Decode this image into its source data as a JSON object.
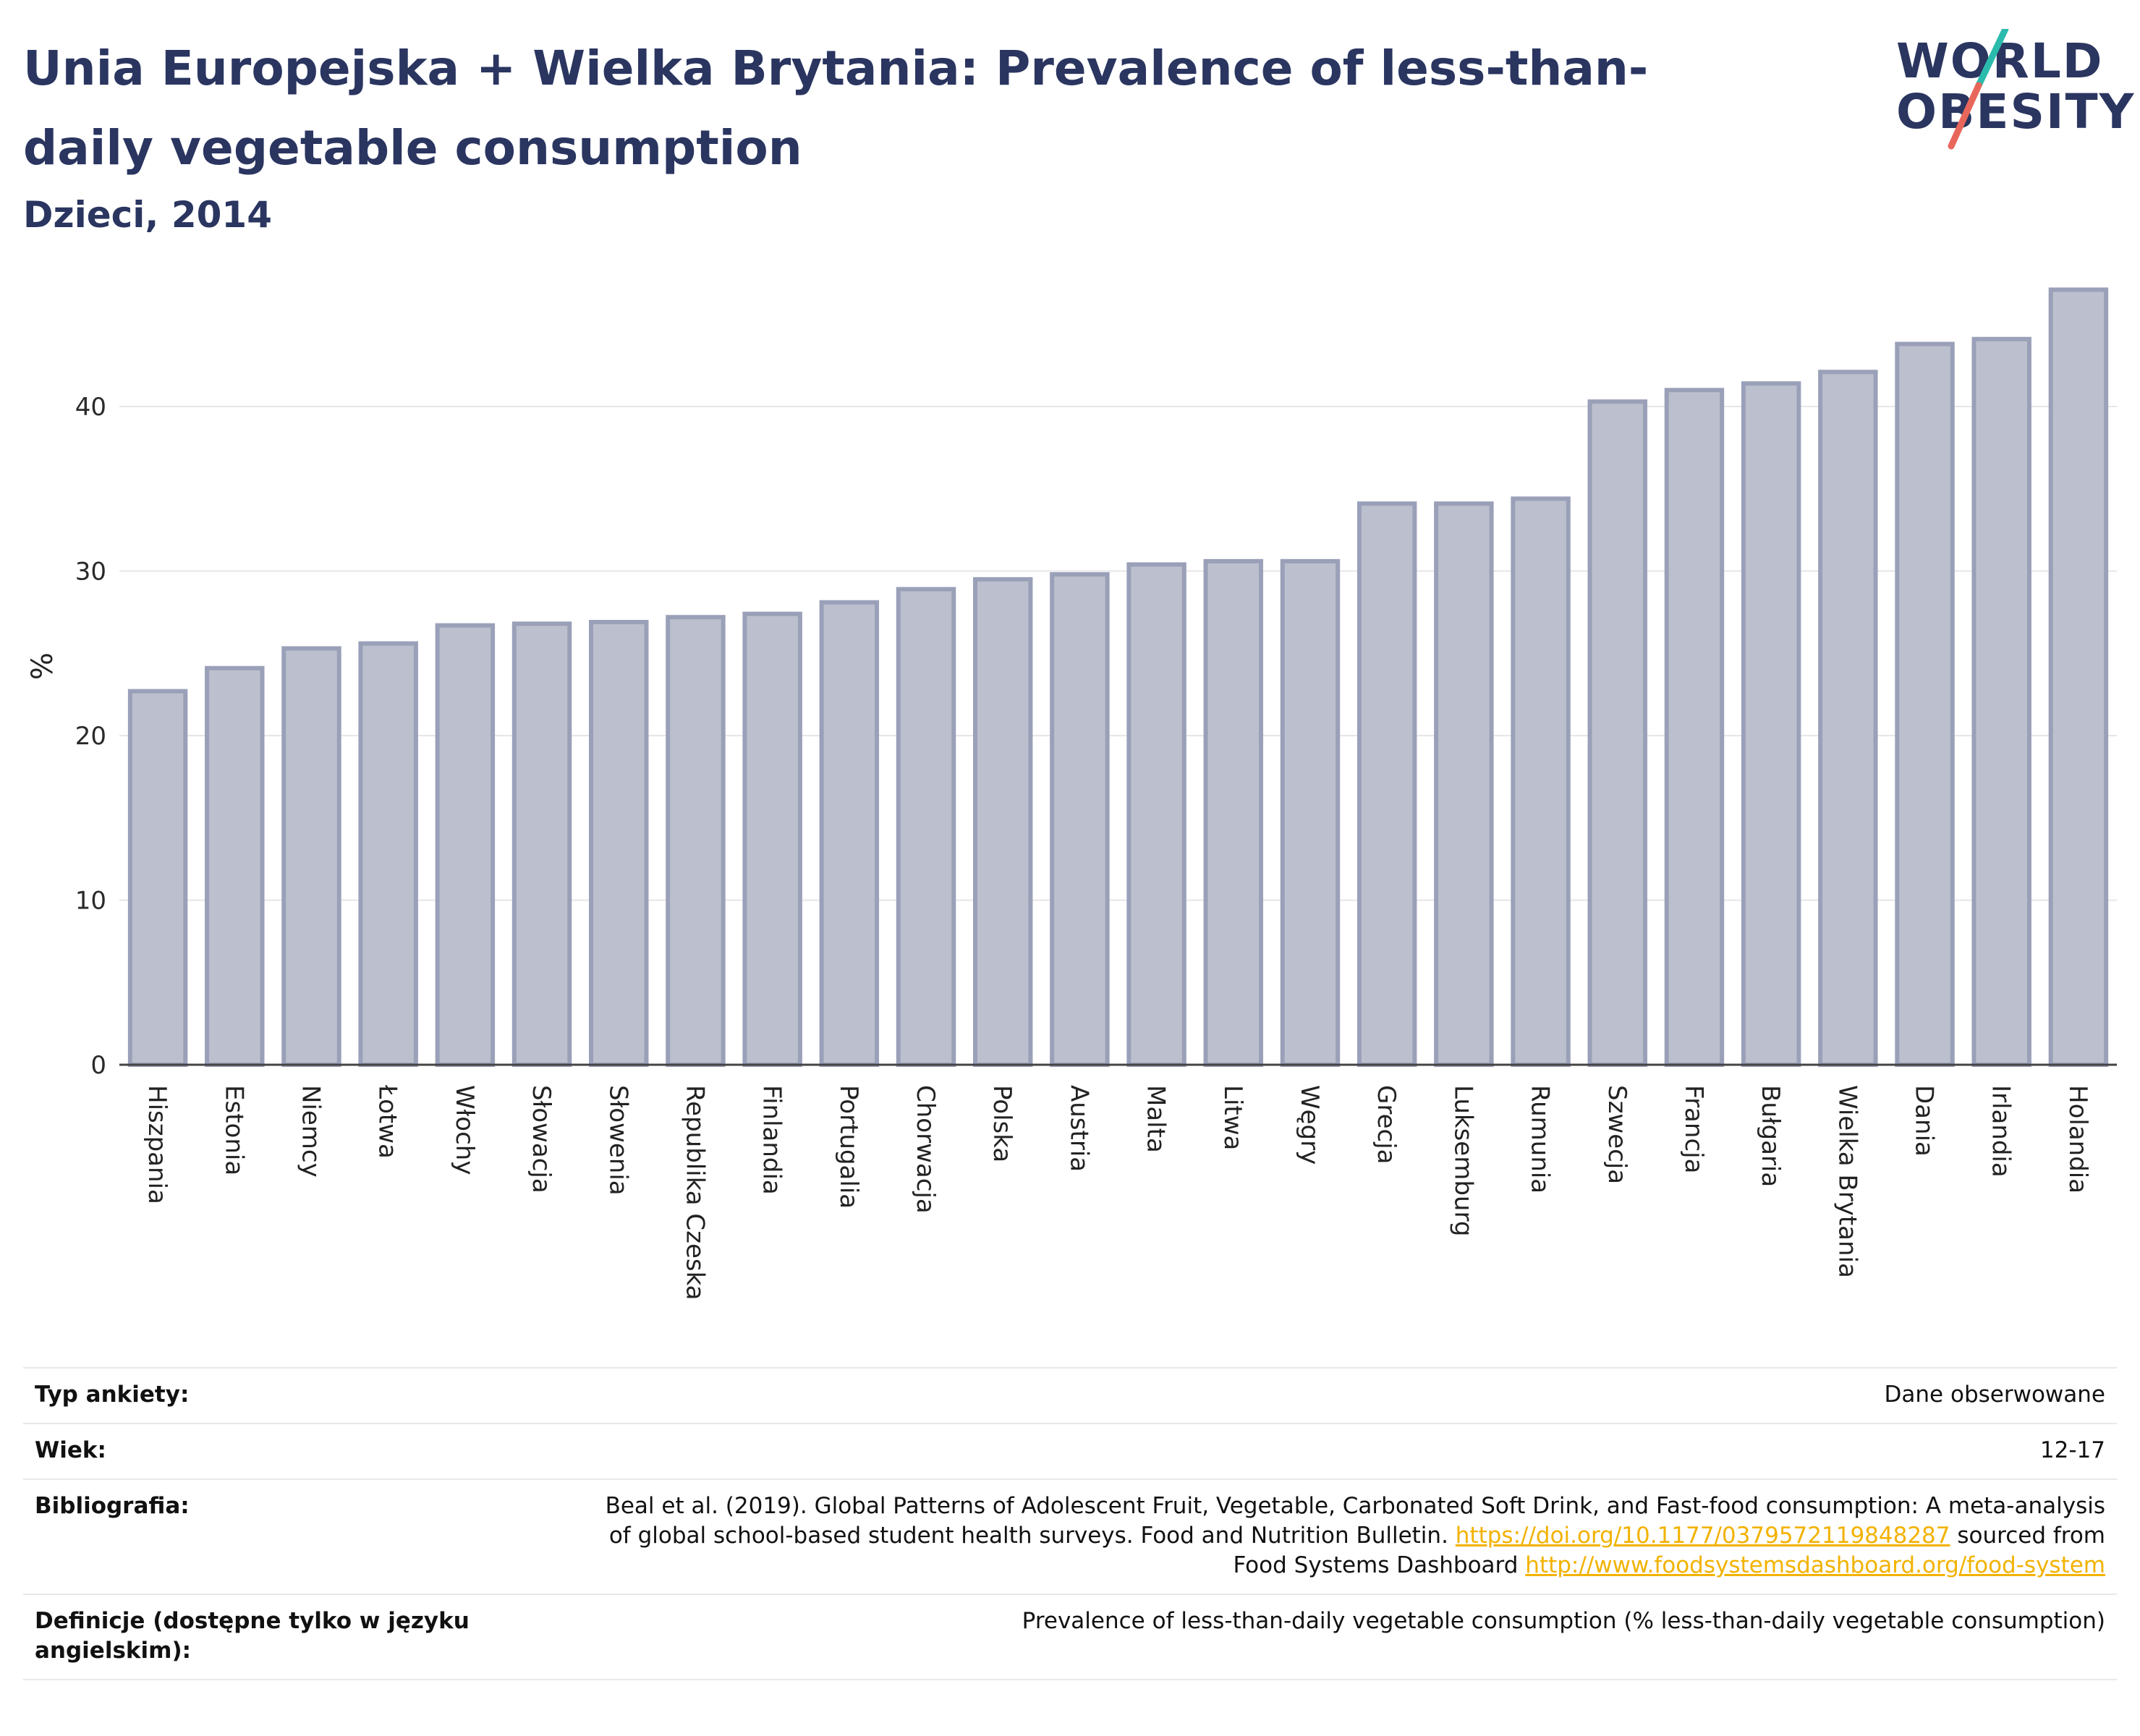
{
  "header": {
    "title": "Unia Europejska + Wielka Brytania: Prevalence of less-than-daily vegetable consumption",
    "subtitle": "Dzieci, 2014"
  },
  "logo": {
    "line1": "WORLD",
    "line2": "OBESITY",
    "accent_colors": [
      "#2bbbad",
      "#e8675a"
    ]
  },
  "chart_data": {
    "type": "bar",
    "title": "Unia Europejska + Wielka Brytania: Prevalence of less-than-daily vegetable consumption",
    "subtitle": "Dzieci, 2014",
    "ylabel": "%",
    "xlabel": "",
    "ylim": [
      0,
      48
    ],
    "yticks": [
      0,
      10,
      20,
      30,
      40
    ],
    "grid": true,
    "legend": "none",
    "bar_color": "#bcc0ce",
    "categories": [
      "Hiszpania",
      "Estonia",
      "Niemcy",
      "Łotwa",
      "Włochy",
      "Słowacja",
      "Słowenia",
      "Republika Czeska",
      "Finlandia",
      "Portugalia",
      "Chorwacja",
      "Polska",
      "Austria",
      "Malta",
      "Litwa",
      "Węgry",
      "Grecja",
      "Luksemburg",
      "Rumunia",
      "Szwecja",
      "Francja",
      "Bułgaria",
      "Wielka Brytania",
      "Dania",
      "Irlandia",
      "Holandia"
    ],
    "values": [
      22.7,
      24.1,
      25.3,
      25.6,
      26.7,
      26.8,
      26.9,
      27.2,
      27.4,
      28.1,
      28.9,
      29.5,
      29.8,
      30.4,
      30.6,
      30.6,
      34.1,
      34.1,
      34.4,
      40.3,
      41.0,
      41.4,
      42.1,
      43.8,
      44.1,
      47.1
    ]
  },
  "meta": {
    "survey_label": "Typ ankiety:",
    "survey_value": "Dane obserwowane",
    "age_label": "Wiek:",
    "age_value": "12-17",
    "bib_label": "Bibliografia:",
    "bib_text1": "Beal et al. (2019). Global Patterns of Adolescent Fruit, Vegetable, Carbonated Soft Drink, and Fast-food consumption: A meta-analysis",
    "bib_text2": "of global school-based student health surveys. Food and Nutrition Bulletin.",
    "bib_link1": "https://doi.org/10.1177/0379572119848287",
    "bib_text3": "sourced from",
    "bib_text4": "Food Systems Dashboard",
    "bib_link2": "http://www.foodsystemsdashboard.org/food-system",
    "def_label": "Definicje (dostępne tylko w języku angielskim):",
    "def_value": "Prevalence of less-than-daily vegetable consumption (% less-than-daily vegetable consumption)"
  }
}
